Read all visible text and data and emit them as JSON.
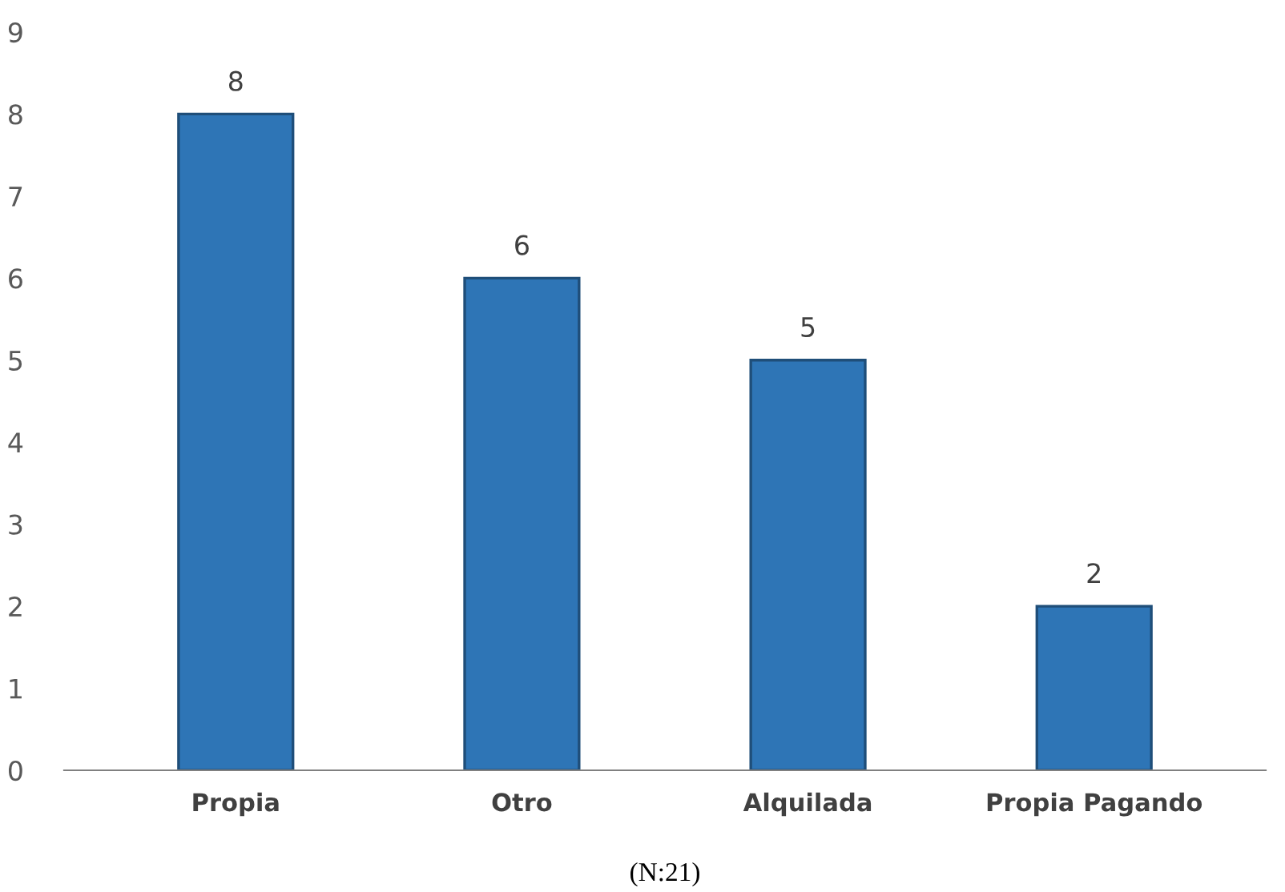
{
  "chart_data": {
    "type": "bar",
    "categories": [
      "Propia",
      "Otro",
      "Alquilada",
      "Propia Pagando"
    ],
    "values": [
      8,
      6,
      5,
      2
    ],
    "color": "#2e75b6",
    "ylim": [
      0,
      9
    ],
    "yticks": [
      0,
      1,
      2,
      3,
      4,
      5,
      6,
      7,
      8,
      9
    ],
    "grid": false,
    "legend": false,
    "data_labels": true,
    "annotations": [
      "(N:21)"
    ]
  }
}
